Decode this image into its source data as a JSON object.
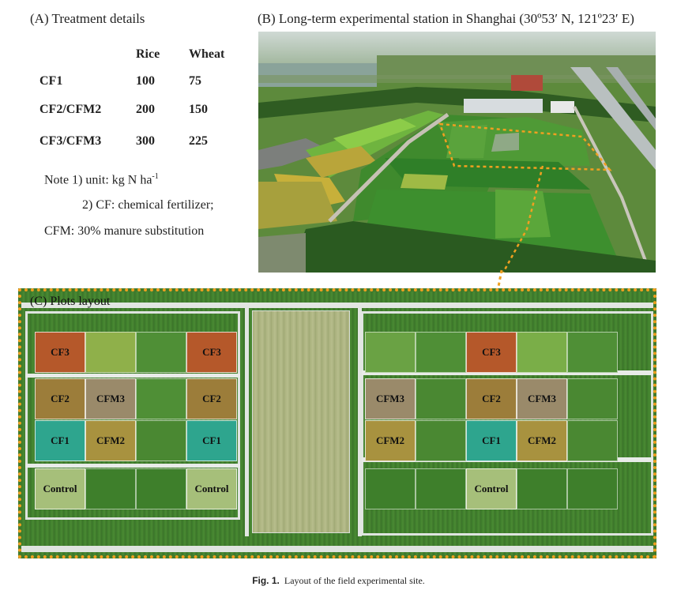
{
  "panelA": {
    "title": "(A) Treatment details",
    "columns": [
      "Rice",
      "Wheat"
    ],
    "rows": [
      {
        "label": "CF1",
        "rice": "100",
        "wheat": "75"
      },
      {
        "label": "CF2/CFM2",
        "rice": "200",
        "wheat": "150"
      },
      {
        "label": "CF3/CFM3",
        "rice": "300",
        "wheat": "225"
      }
    ],
    "note1": "Note 1) unit: kg N ha",
    "note1_sup": "-1",
    "note2": "2) CF: chemical fertilizer;",
    "note3": "CFM: 30% manure substitution"
  },
  "panelB": {
    "title": "(B) Long-term experimental station in Shanghai (30º53′ N, 121º23′ E)"
  },
  "panelC": {
    "title": "(C) Plots layout",
    "plots": {
      "cf3": "CF3",
      "cf2": "CF2",
      "cf1": "CF1",
      "cfm3": "CFM3",
      "cfm2": "CFM2",
      "control": "Control"
    }
  },
  "colors": {
    "cf3": "#b5582a",
    "cf2": "#9c7d3a",
    "cf1": "#2ea58e",
    "cfm3": "#9a8a6a",
    "cfm2": "#a8923f",
    "control": "#a6bf7a",
    "frame": "#f0a020"
  },
  "caption": {
    "label": "Fig. 1.",
    "text": "Layout of the field experimental site."
  }
}
